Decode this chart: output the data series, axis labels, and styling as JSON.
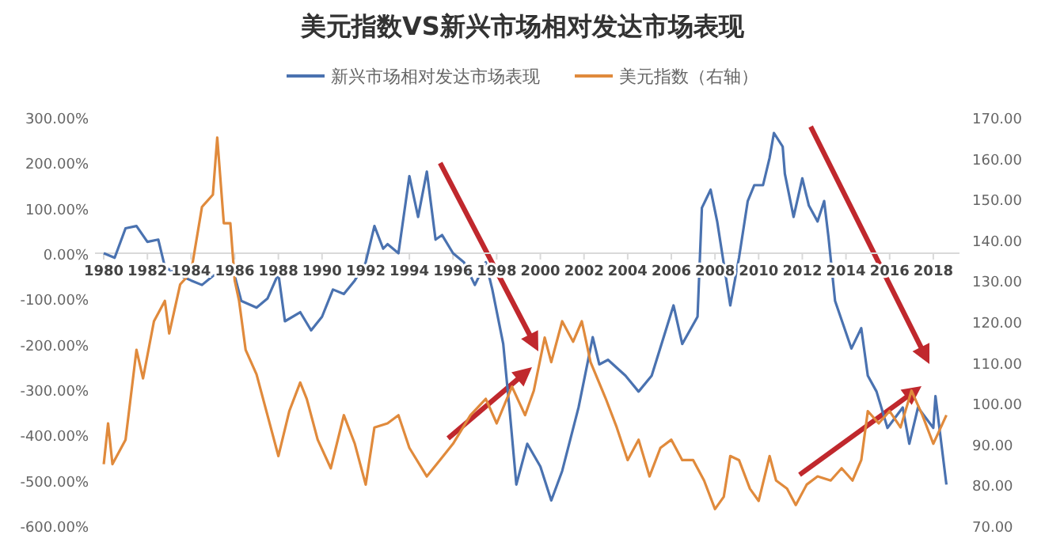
{
  "chart_data": {
    "type": "line",
    "title": "美元指数VS新兴市场相对发达市场表现",
    "legend": "top",
    "grid": false,
    "marker": "none",
    "line_style": "solid",
    "xlim": [
      1979.6,
      2019.2
    ],
    "xticks": [
      1980,
      1982,
      1984,
      1986,
      1988,
      1990,
      1992,
      1994,
      1996,
      1998,
      2000,
      2002,
      2004,
      2006,
      2008,
      2010,
      2012,
      2014,
      2016,
      2018
    ],
    "ylim": [
      -600,
      300
    ],
    "yticks": [
      {
        "value": 300,
        "label": "300.00%"
      },
      {
        "value": 200,
        "label": "200.00%"
      },
      {
        "value": 100,
        "label": "100.00%"
      },
      {
        "value": 0,
        "label": "0.00%"
      },
      {
        "value": -100,
        "label": "-100.00%"
      },
      {
        "value": -200,
        "label": "-200.00%"
      },
      {
        "value": -300,
        "label": "-300.00%"
      },
      {
        "value": -400,
        "label": "-400.00%"
      },
      {
        "value": -500,
        "label": "-500.00%"
      },
      {
        "value": -600,
        "label": "-600.00%"
      }
    ],
    "y2lim": [
      70,
      170
    ],
    "y2ticks": [
      {
        "value": 170,
        "label": "170.00"
      },
      {
        "value": 160,
        "label": "160.00"
      },
      {
        "value": 150,
        "label": "150.00"
      },
      {
        "value": 140,
        "label": "140.00"
      },
      {
        "value": 130,
        "label": "130.00"
      },
      {
        "value": 120,
        "label": "120.00"
      },
      {
        "value": 110,
        "label": "110.00"
      },
      {
        "value": 100,
        "label": "100.00"
      },
      {
        "value": 90,
        "label": "90.00"
      },
      {
        "value": 80,
        "label": "80.00"
      },
      {
        "value": 70,
        "label": "70.00"
      }
    ],
    "series": [
      {
        "name": "新兴市场相对发达市场表现",
        "color": "#4a72b0",
        "x": [
          1980,
          1980.5,
          1981,
          1981.5,
          1982,
          1982.5,
          1982.8,
          1983.3,
          1984,
          1984.5,
          1985,
          1985.5,
          1986,
          1986.3,
          1987,
          1987.5,
          1988,
          1988.3,
          1989,
          1989.5,
          1990,
          1990.5,
          1991,
          1991.5,
          1992,
          1992.4,
          1992.8,
          1993,
          1993.5,
          1994,
          1994.4,
          1994.8,
          1995.2,
          1995.5,
          1996,
          1996.5,
          1997,
          1997.5,
          1997.8,
          1998.3,
          1998.6,
          1998.9,
          1999.4,
          2000,
          2000.5,
          2001,
          2001.75,
          2002.4,
          2002.7,
          2003.1,
          2003.9,
          2004.5,
          2005.1,
          2006.1,
          2006.5,
          2007.2,
          2007.4,
          2007.8,
          2008.1,
          2008.7,
          2009.1,
          2009.5,
          2009.8,
          2010.2,
          2010.5,
          2010.7,
          2011.1,
          2011.2,
          2011.6,
          2012.0,
          2012.3,
          2012.7,
          2013.0,
          2013.2,
          2013.5,
          2014.25,
          2014.7,
          2015.0,
          2015.4,
          2015.9,
          2016.6,
          2016.9,
          2017.3,
          2018.0,
          2018.1,
          2018.6
        ],
        "values": [
          0,
          -10,
          55,
          60,
          25,
          30,
          -30,
          -45,
          -60,
          -70,
          -50,
          -40,
          -50,
          -105,
          -120,
          -100,
          -45,
          -150,
          -130,
          -170,
          -140,
          -80,
          -90,
          -60,
          -20,
          60,
          10,
          20,
          0,
          170,
          80,
          180,
          30,
          40,
          0,
          -20,
          -70,
          -20,
          -80,
          -200,
          -350,
          -510,
          -420,
          -470,
          -545,
          -480,
          -340,
          -185,
          -245,
          -235,
          -270,
          -305,
          -270,
          -115,
          -200,
          -140,
          100,
          140,
          70,
          -115,
          -10,
          115,
          150,
          150,
          210,
          265,
          235,
          175,
          80,
          165,
          105,
          70,
          115,
          35,
          -105,
          -210,
          -165,
          -270,
          -305,
          -385,
          -340,
          -420,
          -340,
          -385,
          -315,
          -510
        ]
      },
      {
        "name": "美元指数（右轴）",
        "color": "#e08a3c",
        "axis": "y2",
        "x": [
          1980,
          1980.2,
          1980.4,
          1981,
          1981.5,
          1981.8,
          1982.3,
          1982.8,
          1983,
          1983.5,
          1984,
          1984.5,
          1985,
          1985.2,
          1985.5,
          1985.8,
          1986,
          1986.2,
          1986.5,
          1987,
          1987.5,
          1988,
          1988.5,
          1989,
          1989.3,
          1989.8,
          1990.4,
          1991,
          1991.5,
          1992,
          1992.4,
          1993,
          1993.5,
          1994,
          1994.8,
          1995.4,
          1996,
          1996.8,
          1997.5,
          1998,
          1998.7,
          1999.3,
          1999.7,
          2000.2,
          2000.5,
          2001,
          2001.5,
          2001.9,
          2002.3,
          2003,
          2003.5,
          2004,
          2004.5,
          2005,
          2005.5,
          2006,
          2006.5,
          2007,
          2007.5,
          2008,
          2008.4,
          2008.7,
          2009.1,
          2009.6,
          2010,
          2010.5,
          2010.8,
          2011.3,
          2011.7,
          2012.2,
          2012.7,
          2013.3,
          2013.8,
          2014.3,
          2014.7,
          2015,
          2015.5,
          2016,
          2016.5,
          2017,
          2017.5,
          2018,
          2018.6
        ],
        "values": [
          85,
          95,
          85,
          91,
          113,
          106,
          120,
          125,
          117,
          129,
          132,
          148,
          151,
          165,
          144,
          144,
          130,
          125,
          113,
          107,
          97,
          87,
          98,
          105,
          101,
          91,
          84,
          97,
          90,
          80,
          94,
          95,
          97,
          89,
          82,
          86,
          90,
          97,
          101,
          95,
          104,
          97,
          103,
          116,
          110,
          120,
          115,
          120,
          110,
          101,
          94,
          86,
          91,
          82,
          89,
          91,
          86,
          86,
          81,
          74,
          77,
          87,
          86,
          79,
          76,
          87,
          81,
          79,
          75,
          80,
          82,
          81,
          84,
          81,
          86,
          98,
          95,
          98,
          94,
          103,
          97,
          90,
          97
        ]
      }
    ]
  }
}
